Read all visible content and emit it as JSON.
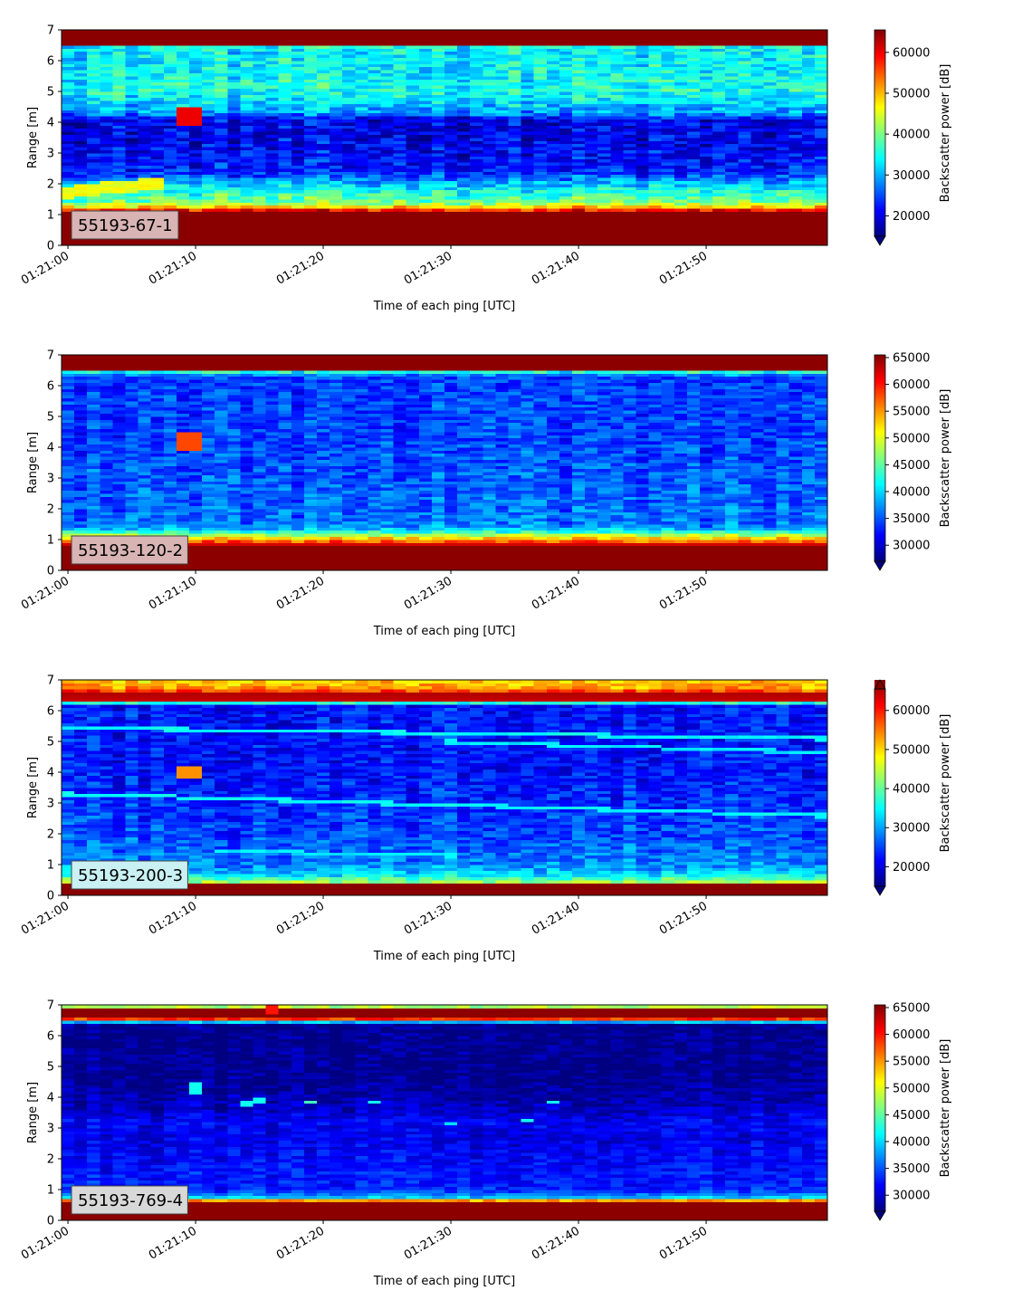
{
  "chart_data": [
    {
      "type": "heatmap",
      "panel_label": "55193-67-1",
      "panel_label_bg": "#d8b4b4",
      "xlabel": "Time of each ping [UTC]",
      "ylabel": "Range [m]",
      "x_tick_labels": [
        "01:21:00",
        "01:21:10",
        "01:21:20",
        "01:21:30",
        "01:21:40",
        "01:21:50"
      ],
      "x_range_seconds": [
        -0.5,
        59.5
      ],
      "y_ticks": [
        0,
        1,
        2,
        3,
        4,
        5,
        6,
        7
      ],
      "ylim": [
        0,
        7
      ],
      "colorbar": {
        "label": "Backscatter power [dB]",
        "ticks": [
          20000,
          30000,
          40000,
          50000,
          60000
        ],
        "range": [
          15000,
          65500
        ],
        "extend": "min"
      },
      "colormap": "jet",
      "profile": [
        [
          0,
          65000
        ],
        [
          0.25,
          65000
        ],
        [
          1.1,
          65000
        ],
        [
          1.2,
          52000
        ],
        [
          1.4,
          40000
        ],
        [
          1.9,
          33000
        ],
        [
          2.3,
          24000
        ],
        [
          2.6,
          22000
        ],
        [
          3.0,
          21000
        ],
        [
          3.5,
          20500
        ],
        [
          4.1,
          20000
        ],
        [
          4.3,
          29000
        ],
        [
          5.0,
          35000
        ],
        [
          6.3,
          33000
        ],
        [
          6.48,
          35000
        ],
        [
          6.55,
          65000
        ],
        [
          7,
          65000
        ]
      ],
      "profile_noise": 5500,
      "features": [
        {
          "kind": "blob",
          "t": [
            9,
            10.5
          ],
          "range": [
            3.95,
            4.5
          ],
          "value": 60000
        },
        {
          "kind": "ramp",
          "t": [
            0,
            7
          ],
          "range_start": [
            1.55,
            1.95
          ],
          "range_end": [
            1.8,
            2.2
          ],
          "value": 46000
        }
      ]
    },
    {
      "type": "heatmap",
      "panel_label": "55193-120-2",
      "panel_label_bg": "#d8b4b4",
      "xlabel": "Time of each ping [UTC]",
      "ylabel": "Range [m]",
      "x_tick_labels": [
        "01:21:00",
        "01:21:10",
        "01:21:20",
        "01:21:30",
        "01:21:40",
        "01:21:50"
      ],
      "x_range_seconds": [
        -0.5,
        59.5
      ],
      "y_ticks": [
        0,
        1,
        2,
        3,
        4,
        5,
        6,
        7
      ],
      "ylim": [
        0,
        7
      ],
      "colorbar": {
        "label": "Backscatter power [dB]",
        "ticks": [
          30000,
          35000,
          40000,
          45000,
          50000,
          55000,
          60000,
          65000
        ],
        "range": [
          27000,
          65500
        ],
        "extend": "min"
      },
      "colormap": "jet",
      "profile": [
        [
          0,
          65000
        ],
        [
          0.25,
          65000
        ],
        [
          0.8,
          65000
        ],
        [
          0.95,
          57000
        ],
        [
          1.15,
          48000
        ],
        [
          1.3,
          40000
        ],
        [
          1.5,
          36000
        ],
        [
          3.0,
          35000
        ],
        [
          4.5,
          34000
        ],
        [
          6.3,
          34000
        ],
        [
          6.45,
          42000
        ],
        [
          6.55,
          65000
        ],
        [
          7,
          65000
        ]
      ],
      "profile_noise": 3500,
      "features": [
        {
          "kind": "blob",
          "t": [
            9,
            10.5
          ],
          "range": [
            3.95,
            4.45
          ],
          "value": 58000
        }
      ]
    },
    {
      "type": "heatmap",
      "panel_label": "55193-200-3",
      "panel_label_bg": "#c9f0f3",
      "xlabel": "Time of each ping [UTC]",
      "ylabel": "Range [m]",
      "x_tick_labels": [
        "01:21:00",
        "01:21:10",
        "01:21:20",
        "01:21:30",
        "01:21:40",
        "01:21:50"
      ],
      "x_range_seconds": [
        -0.5,
        59.5
      ],
      "y_ticks": [
        0,
        1,
        2,
        3,
        4,
        5,
        6,
        7
      ],
      "ylim": [
        0,
        7
      ],
      "colorbar": {
        "label": "Backscatter power [dB]",
        "ticks": [
          20000,
          30000,
          40000,
          50000,
          60000
        ],
        "range": [
          15000,
          65500
        ],
        "extend": "both"
      },
      "colormap": "jet",
      "profile": [
        [
          0,
          65000
        ],
        [
          0.1,
          65000
        ],
        [
          0.35,
          65000
        ],
        [
          0.45,
          42000
        ],
        [
          0.7,
          32000
        ],
        [
          1.0,
          28000
        ],
        [
          2.0,
          25000
        ],
        [
          4.0,
          22000
        ],
        [
          6.2,
          22000
        ],
        [
          6.35,
          62000
        ],
        [
          6.55,
          63000
        ],
        [
          6.7,
          52000
        ],
        [
          7,
          48000
        ]
      ],
      "profile_noise": 4500,
      "features": [
        {
          "kind": "blob",
          "t": [
            9,
            10.5
          ],
          "range": [
            3.85,
            4.15
          ],
          "value": 52000
        },
        {
          "kind": "line",
          "t": [
            0,
            59
          ],
          "range_start": 5.45,
          "range_end": 5.1,
          "value": 34000
        },
        {
          "kind": "line",
          "t": [
            0,
            59
          ],
          "range_start": 3.3,
          "range_end": 2.6,
          "value": 34000
        },
        {
          "kind": "line",
          "t": [
            30,
            59
          ],
          "range_start": 5.0,
          "range_end": 4.65,
          "value": 33000
        },
        {
          "kind": "line",
          "t": [
            12,
            30
          ],
          "range_start": 1.45,
          "range_end": 1.3,
          "value": 33000
        }
      ]
    },
    {
      "type": "heatmap",
      "panel_label": "55193-769-4",
      "panel_label_bg": "#d8d8d8",
      "xlabel": "Time of each ping [UTC]",
      "ylabel": "Range [m]",
      "x_tick_labels": [
        "01:21:00",
        "01:21:10",
        "01:21:20",
        "01:21:30",
        "01:21:40",
        "01:21:50"
      ],
      "x_range_seconds": [
        -0.5,
        59.5
      ],
      "y_ticks": [
        0,
        1,
        2,
        3,
        4,
        5,
        6,
        7
      ],
      "ylim": [
        0,
        7
      ],
      "colorbar": {
        "label": "Backscatter power [dB]",
        "ticks": [
          30000,
          35000,
          40000,
          45000,
          50000,
          55000,
          60000,
          65000
        ],
        "range": [
          27000,
          65500
        ],
        "extend": "min"
      },
      "colormap": "jet",
      "profile": [
        [
          0,
          65000
        ],
        [
          0.2,
          65000
        ],
        [
          0.6,
          65000
        ],
        [
          0.72,
          40000
        ],
        [
          1.0,
          33000
        ],
        [
          2.0,
          32000
        ],
        [
          2.6,
          31000
        ],
        [
          3.2,
          31500
        ],
        [
          3.7,
          29500
        ],
        [
          4.5,
          27500
        ],
        [
          6.4,
          27500
        ],
        [
          6.52,
          55000
        ],
        [
          6.6,
          65000
        ],
        [
          6.9,
          65000
        ],
        [
          6.95,
          48000
        ],
        [
          7,
          48000
        ]
      ],
      "profile_noise": 2500,
      "features": [
        {
          "kind": "blob",
          "t": [
            9.5,
            10.5
          ],
          "range": [
            4.1,
            4.45
          ],
          "value": 42000
        },
        {
          "kind": "blob",
          "t": [
            13.5,
            14.5
          ],
          "range": [
            3.75,
            3.85
          ],
          "value": 42000
        },
        {
          "kind": "blob",
          "t": [
            14.5,
            15.5
          ],
          "range": [
            3.85,
            3.95
          ],
          "value": 42000
        },
        {
          "kind": "blob",
          "t": [
            18.5,
            19.5
          ],
          "range": [
            3.83,
            3.93
          ],
          "value": 44000
        },
        {
          "kind": "blob",
          "t": [
            23.5,
            24.5
          ],
          "range": [
            3.8,
            3.9
          ],
          "value": 42000
        },
        {
          "kind": "blob",
          "t": [
            29.5,
            30.5
          ],
          "range": [
            3.07,
            3.15
          ],
          "value": 40000
        },
        {
          "kind": "blob",
          "t": [
            35.5,
            36.5
          ],
          "range": [
            3.18,
            3.26
          ],
          "value": 42000
        },
        {
          "kind": "blob",
          "t": [
            37.5,
            38.5
          ],
          "range": [
            3.8,
            3.9
          ],
          "value": 42000
        },
        {
          "kind": "blob",
          "t": [
            15.5,
            16.5
          ],
          "range": [
            6.72,
            6.95
          ],
          "value": 60000
        }
      ]
    }
  ]
}
